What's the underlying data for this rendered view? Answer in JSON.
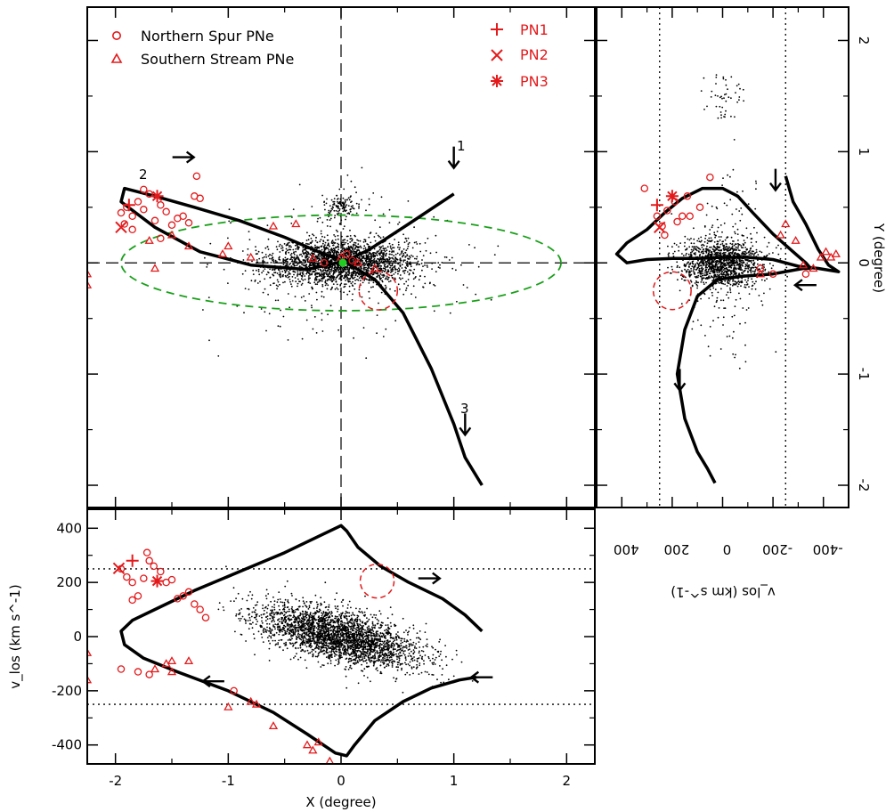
{
  "colors": {
    "axes": "#000000",
    "stars": "#000000",
    "pne": "#e31a1c",
    "ellipse": "#1aa01a",
    "center": "#22cc22",
    "background": "#ffffff"
  },
  "legend": {
    "left": [
      {
        "marker": "circle",
        "label": "Northern Spur PNe"
      },
      {
        "marker": "triangle",
        "label": "Southern Stream PNe"
      }
    ],
    "right": [
      {
        "marker": "plus",
        "label": "PN1"
      },
      {
        "marker": "cross",
        "label": "PN2"
      },
      {
        "marker": "asterisk",
        "label": "PN3"
      }
    ]
  },
  "annotations": {
    "orbit1": "1",
    "orbit2": "2",
    "orbit3": "3"
  },
  "chart_data": [
    {
      "panel": "sky (X vs Y)",
      "type": "scatter",
      "xlabel": "",
      "ylabel": "",
      "xlim": [
        -2.25,
        2.25
      ],
      "ylim": [
        -2.2,
        2.3
      ],
      "xticks": [
        -2,
        -1,
        0,
        1,
        2
      ],
      "yticks": [
        -2,
        -1,
        0,
        1,
        2
      ],
      "reference_lines": {
        "x": 0,
        "y": 0,
        "style": "dashed"
      },
      "ellipse": {
        "center": [
          0,
          0
        ],
        "semi_x": 1.95,
        "semi_y": 0.43,
        "style": "dashed",
        "color": "green"
      },
      "stars": {
        "n_points": 2600,
        "description": "dense bulge population, elongated along X"
      },
      "orbit": [
        [
          1.0,
          0.62
        ],
        [
          0.6,
          0.35
        ],
        [
          0.25,
          0.12
        ],
        [
          0.05,
          0.02
        ],
        [
          -0.3,
          -0.06
        ],
        [
          -0.8,
          -0.02
        ],
        [
          -1.25,
          0.1
        ],
        [
          -1.65,
          0.32
        ],
        [
          -1.95,
          0.55
        ],
        [
          -1.92,
          0.67
        ],
        [
          -1.65,
          0.6
        ],
        [
          -1.3,
          0.5
        ],
        [
          -0.9,
          0.38
        ],
        [
          -0.5,
          0.23
        ],
        [
          -0.2,
          0.1
        ],
        [
          0.05,
          0.0
        ],
        [
          0.3,
          -0.15
        ],
        [
          0.55,
          -0.45
        ],
        [
          0.8,
          -0.95
        ],
        [
          1.0,
          -1.45
        ],
        [
          1.1,
          -1.75
        ],
        [
          1.25,
          -2.0
        ]
      ],
      "arrows": [
        {
          "label": "1",
          "at": [
            1.0,
            0.95
          ],
          "direction": "down"
        },
        {
          "label": "2",
          "at": [
            -1.4,
            0.95
          ],
          "direction": "right"
        },
        {
          "label": "3",
          "at": [
            1.1,
            -1.45
          ],
          "direction": "down"
        }
      ],
      "highlight_circle": {
        "center": [
          0.33,
          -0.25
        ],
        "radius_deg": 0.17,
        "color": "red",
        "style": "dashed"
      },
      "northern_spur_pne": [
        [
          -1.95,
          0.45
        ],
        [
          -1.9,
          0.5
        ],
        [
          -1.85,
          0.42
        ],
        [
          -1.8,
          0.55
        ],
        [
          -1.75,
          0.48
        ],
        [
          -1.7,
          0.62
        ],
        [
          -1.65,
          0.38
        ],
        [
          -1.6,
          0.52
        ],
        [
          -1.55,
          0.46
        ],
        [
          -1.5,
          0.34
        ],
        [
          -1.45,
          0.4
        ],
        [
          -1.4,
          0.42
        ],
        [
          -1.35,
          0.36
        ],
        [
          -1.3,
          0.6
        ],
        [
          -1.28,
          0.78
        ],
        [
          -1.25,
          0.58
        ],
        [
          -1.75,
          0.66
        ],
        [
          -1.85,
          0.3
        ],
        [
          -1.92,
          0.35
        ],
        [
          -1.6,
          0.22
        ],
        [
          0.05,
          0.08
        ],
        [
          0.1,
          0.02
        ],
        [
          -0.15,
          0.0
        ]
      ],
      "southern_stream_pne": [
        [
          -2.25,
          -0.2
        ],
        [
          -2.25,
          -0.1
        ],
        [
          -1.7,
          0.2
        ],
        [
          -1.65,
          -0.05
        ],
        [
          -1.5,
          0.25
        ],
        [
          -1.35,
          0.15
        ],
        [
          -1.0,
          0.15
        ],
        [
          -0.8,
          0.05
        ],
        [
          -0.6,
          0.33
        ],
        [
          -0.25,
          0.04
        ],
        [
          0.0,
          0.05
        ],
        [
          0.15,
          0.0
        ],
        [
          0.3,
          -0.05
        ],
        [
          -1.05,
          0.08
        ],
        [
          -0.4,
          0.35
        ]
      ],
      "special_pne": [
        {
          "name": "PN1",
          "marker": "plus",
          "x": -1.88,
          "y": 0.52
        },
        {
          "name": "PN2",
          "marker": "cross",
          "x": -1.95,
          "y": 0.32
        },
        {
          "name": "PN3",
          "marker": "asterisk",
          "x": -1.63,
          "y": 0.6
        }
      ]
    },
    {
      "panel": "Y vs velocity",
      "type": "scatter",
      "xlabel": "v_los (km s^-1)",
      "ylabel": "Y (degree)",
      "xlim": [
        500,
        -500
      ],
      "ylim": [
        -2.2,
        2.3
      ],
      "xticks": [
        400,
        200,
        0,
        -200,
        -400
      ],
      "yticks": [
        -2,
        -1,
        0,
        1,
        2
      ],
      "reference_lines_x": [
        250,
        -250
      ],
      "stars": {
        "n_points": 1500,
        "description": "dense cloud around Y=0"
      },
      "orbit": [
        [
          -250,
          0.78
        ],
        [
          -280,
          0.55
        ],
        [
          -330,
          0.35
        ],
        [
          -380,
          0.12
        ],
        [
          -420,
          -0.02
        ],
        [
          -460,
          -0.08
        ],
        [
          -380,
          -0.05
        ],
        [
          -300,
          -0.03
        ],
        [
          -200,
          0.03
        ],
        [
          -100,
          0.05
        ],
        [
          0,
          0.05
        ],
        [
          100,
          0.04
        ],
        [
          200,
          0.04
        ],
        [
          300,
          0.03
        ],
        [
          380,
          0.0
        ],
        [
          420,
          0.08
        ],
        [
          380,
          0.18
        ],
        [
          300,
          0.3
        ],
        [
          230,
          0.45
        ],
        [
          160,
          0.58
        ],
        [
          80,
          0.67
        ],
        [
          0,
          0.67
        ],
        [
          -60,
          0.6
        ],
        [
          -120,
          0.45
        ],
        [
          -200,
          0.26
        ],
        [
          -280,
          0.1
        ],
        [
          -330,
          0.0
        ],
        [
          -350,
          -0.05
        ],
        [
          -320,
          -0.05
        ],
        [
          -200,
          -0.1
        ],
        [
          -80,
          -0.12
        ],
        [
          20,
          -0.15
        ],
        [
          100,
          -0.3
        ],
        [
          150,
          -0.6
        ],
        [
          180,
          -1.0
        ],
        [
          150,
          -1.4
        ],
        [
          100,
          -1.7
        ],
        [
          60,
          -1.85
        ],
        [
          30,
          -1.98
        ]
      ],
      "arrows": [
        {
          "at": [
            -210,
            0.75
          ],
          "direction": "down"
        },
        {
          "at": [
            -330,
            -0.2
          ],
          "direction": "left"
        },
        {
          "at": [
            170,
            -1.05
          ],
          "direction": "down"
        }
      ],
      "highlight_circle": {
        "center": [
          200,
          -0.25
        ],
        "radius_deg": 0.17,
        "color": "red",
        "style": "dashed"
      },
      "northern_spur_pne": [
        [
          310,
          0.67
        ],
        [
          260,
          0.42
        ],
        [
          240,
          0.33
        ],
        [
          220,
          0.47
        ],
        [
          180,
          0.37
        ],
        [
          160,
          0.42
        ],
        [
          130,
          0.42
        ],
        [
          90,
          0.5
        ],
        [
          50,
          0.77
        ],
        [
          140,
          0.6
        ],
        [
          190,
          0.55
        ],
        [
          230,
          0.25
        ],
        [
          -330,
          -0.1
        ],
        [
          -200,
          -0.1
        ],
        [
          -150,
          -0.05
        ]
      ],
      "southern_stream_pne": [
        [
          -390,
          0.05
        ],
        [
          -410,
          0.1
        ],
        [
          -430,
          0.05
        ],
        [
          -450,
          0.08
        ],
        [
          -360,
          -0.05
        ],
        [
          -230,
          0.25
        ],
        [
          -250,
          0.35
        ],
        [
          -150,
          -0.1
        ],
        [
          -290,
          0.2
        ],
        [
          -320,
          -0.02
        ]
      ],
      "special_pne": [
        {
          "name": "PN1",
          "marker": "plus",
          "x": 260,
          "y": 0.52
        },
        {
          "name": "PN2",
          "marker": "cross",
          "x": 250,
          "y": 0.32
        },
        {
          "name": "PN3",
          "marker": "asterisk",
          "x": 200,
          "y": 0.6
        }
      ]
    },
    {
      "panel": "velocity vs X",
      "type": "scatter",
      "xlabel": "X (degree)",
      "ylabel": "v_los (km s^-1)",
      "xlim": [
        -2.25,
        2.25
      ],
      "ylim": [
        -470,
        470
      ],
      "xticks": [
        -2,
        -1,
        0,
        1,
        2
      ],
      "yticks": [
        400,
        200,
        0,
        -200,
        -400
      ],
      "reference_lines_y": [
        250,
        -250
      ],
      "stars": {
        "n_points": 2900,
        "description": "rotating bulge, running from upper left to lower right"
      },
      "orbit": [
        [
          1.25,
          20
        ],
        [
          1.1,
          80
        ],
        [
          0.9,
          140
        ],
        [
          0.6,
          200
        ],
        [
          0.35,
          260
        ],
        [
          0.15,
          330
        ],
        [
          0.05,
          390
        ],
        [
          0.0,
          410
        ],
        [
          -0.2,
          370
        ],
        [
          -0.5,
          310
        ],
        [
          -0.9,
          240
        ],
        [
          -1.3,
          170
        ],
        [
          -1.6,
          110
        ],
        [
          -1.85,
          60
        ],
        [
          -1.95,
          20
        ],
        [
          -1.92,
          -30
        ],
        [
          -1.75,
          -80
        ],
        [
          -1.45,
          -130
        ],
        [
          -1.0,
          -200
        ],
        [
          -0.6,
          -280
        ],
        [
          -0.3,
          -360
        ],
        [
          -0.05,
          -430
        ],
        [
          0.05,
          -440
        ],
        [
          0.12,
          -400
        ],
        [
          0.3,
          -310
        ],
        [
          0.55,
          -240
        ],
        [
          0.8,
          -190
        ],
        [
          1.05,
          -160
        ],
        [
          1.2,
          -150
        ]
      ],
      "arrows": [
        {
          "at": [
            0.78,
            215
          ],
          "direction": "right"
        },
        {
          "at": [
            -1.13,
            -165
          ],
          "direction": "left"
        },
        {
          "at": [
            1.25,
            -150
          ],
          "direction": "left"
        }
      ],
      "highlight_circle": {
        "center": [
          0.32,
          205
        ],
        "radius_deg": 0.15,
        "color": "red",
        "style": "dashed"
      },
      "northern_spur_pne": [
        [
          -1.95,
          250
        ],
        [
          -1.9,
          220
        ],
        [
          -1.85,
          200
        ],
        [
          -1.8,
          150
        ],
        [
          -1.75,
          215
        ],
        [
          -1.72,
          310
        ],
        [
          -1.7,
          280
        ],
        [
          -1.66,
          260
        ],
        [
          -1.6,
          240
        ],
        [
          -1.55,
          200
        ],
        [
          -1.5,
          210
        ],
        [
          -1.45,
          140
        ],
        [
          -1.4,
          150
        ],
        [
          -1.35,
          165
        ],
        [
          -1.3,
          120
        ],
        [
          -1.25,
          100
        ],
        [
          -1.2,
          70
        ],
        [
          -1.85,
          135
        ],
        [
          -1.95,
          -120
        ],
        [
          -1.8,
          -130
        ],
        [
          -1.7,
          -140
        ],
        [
          -0.95,
          -200
        ]
      ],
      "southern_stream_pne": [
        [
          -2.25,
          -60
        ],
        [
          -2.25,
          -160
        ],
        [
          -1.65,
          -120
        ],
        [
          -1.5,
          -130
        ],
        [
          -1.35,
          -90
        ],
        [
          -1.0,
          -260
        ],
        [
          -0.8,
          -240
        ],
        [
          -0.75,
          -250
        ],
        [
          -0.6,
          -330
        ],
        [
          -0.3,
          -400
        ],
        [
          -0.2,
          -390
        ],
        [
          -0.1,
          -460
        ],
        [
          -0.25,
          -420
        ],
        [
          -1.5,
          -90
        ],
        [
          -1.55,
          -100
        ]
      ],
      "special_pne": [
        {
          "name": "PN1",
          "marker": "plus",
          "x": -1.85,
          "y": 280
        },
        {
          "name": "PN2",
          "marker": "cross",
          "x": -1.97,
          "y": 252
        },
        {
          "name": "PN3",
          "marker": "asterisk",
          "x": -1.63,
          "y": 205
        }
      ]
    }
  ]
}
